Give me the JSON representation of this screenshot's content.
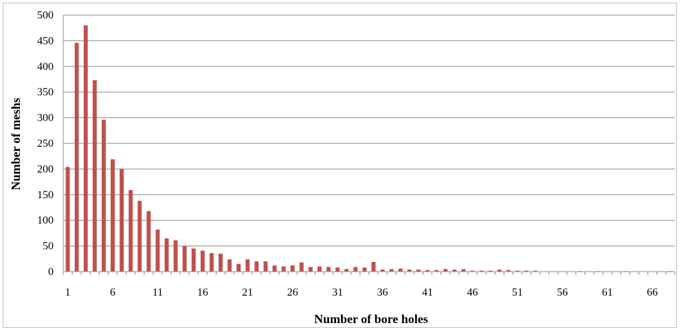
{
  "chart_data": {
    "type": "bar",
    "title": "",
    "xlabel": "Number of bore holes",
    "ylabel": "Number of meshs",
    "ylim": [
      0,
      500
    ],
    "yticks": [
      0,
      50,
      100,
      150,
      200,
      250,
      300,
      350,
      400,
      450,
      500
    ],
    "xticks": [
      1,
      6,
      11,
      16,
      21,
      26,
      31,
      36,
      41,
      46,
      51,
      56,
      61,
      66
    ],
    "grid": true,
    "legend": "none",
    "bar_color": "#c0504d",
    "categories": [
      1,
      2,
      3,
      4,
      5,
      6,
      7,
      8,
      9,
      10,
      11,
      12,
      13,
      14,
      15,
      16,
      17,
      18,
      19,
      20,
      21,
      22,
      23,
      24,
      25,
      26,
      27,
      28,
      29,
      30,
      31,
      32,
      33,
      34,
      35,
      36,
      37,
      38,
      39,
      40,
      41,
      42,
      43,
      44,
      45,
      46,
      47,
      48,
      49,
      50,
      51,
      52,
      53,
      54,
      55,
      56,
      57,
      58,
      59,
      60,
      61,
      62,
      63,
      64,
      65,
      66,
      67,
      68
    ],
    "values": [
      204,
      446,
      480,
      373,
      296,
      219,
      200,
      159,
      138,
      118,
      82,
      65,
      61,
      50,
      45,
      41,
      36,
      35,
      24,
      15,
      24,
      20,
      20,
      12,
      10,
      12,
      18,
      9,
      10,
      9,
      8,
      5,
      9,
      8,
      19,
      4,
      5,
      6,
      4,
      4,
      3,
      3,
      5,
      4,
      5,
      2,
      2,
      2,
      4,
      3,
      2,
      2,
      2,
      0,
      0,
      0,
      0,
      1,
      0,
      1,
      0,
      0,
      1,
      0,
      0,
      0,
      0,
      1
    ]
  }
}
